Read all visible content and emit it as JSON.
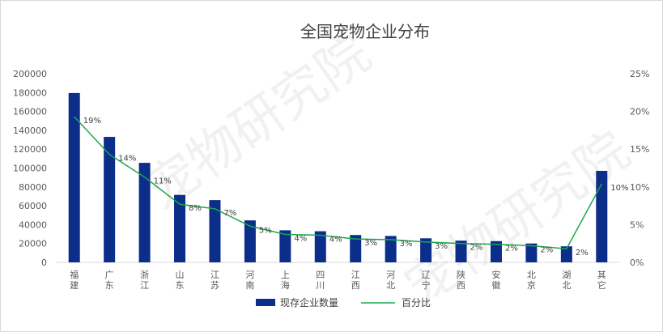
{
  "chart_data": {
    "type": "bar",
    "title": "全国宠物企业分布",
    "categories": [
      [
        "福",
        "建"
      ],
      [
        "广",
        "东"
      ],
      [
        "浙",
        "江"
      ],
      [
        "山",
        "东"
      ],
      [
        "江",
        "苏"
      ],
      [
        "河",
        "南"
      ],
      [
        "上",
        "海"
      ],
      [
        "四",
        "川"
      ],
      [
        "江",
        "西"
      ],
      [
        "河",
        "北"
      ],
      [
        "辽",
        "宁"
      ],
      [
        "陕",
        "西"
      ],
      [
        "安",
        "徽"
      ],
      [
        "北",
        "京"
      ],
      [
        "湖",
        "北"
      ],
      [
        "其",
        "它"
      ]
    ],
    "series": [
      {
        "name": "现存企业数量",
        "type": "bar",
        "axis": "left",
        "color": "#0b2e8a",
        "values": [
          179500,
          133000,
          105500,
          71500,
          66000,
          44500,
          34000,
          33000,
          29000,
          28000,
          25500,
          23000,
          22500,
          20000,
          17000,
          97000
        ]
      },
      {
        "name": "百分比",
        "type": "line",
        "axis": "right",
        "color": "#1aa84a",
        "values": [
          19.3,
          14.3,
          11.3,
          7.7,
          7.1,
          4.8,
          3.7,
          3.6,
          3.1,
          3.0,
          2.7,
          2.5,
          2.4,
          2.2,
          1.8,
          10.4
        ],
        "labels": [
          "19%",
          "14%",
          "11%",
          "8%",
          "7%",
          "5%",
          "4%",
          "4%",
          "3%",
          "3%",
          "3%",
          "2%",
          "2%",
          "2%",
          "2%",
          "10%"
        ]
      }
    ],
    "y_left": {
      "ylim": [
        0,
        200000
      ],
      "ticks": [
        "0",
        "20000",
        "40000",
        "60000",
        "80000",
        "100000",
        "120000",
        "140000",
        "160000",
        "180000",
        "200000"
      ]
    },
    "y_right": {
      "ylim": [
        0,
        25
      ],
      "ticks": [
        "0%",
        "5%",
        "10%",
        "15%",
        "20%",
        "25%"
      ]
    },
    "legend": {
      "position": "bottom",
      "items": [
        {
          "label": "现存企业数量",
          "kind": "bar",
          "color": "#0b2e8a"
        },
        {
          "label": "百分比",
          "kind": "line",
          "color": "#1aa84a"
        }
      ]
    },
    "grid": false
  }
}
